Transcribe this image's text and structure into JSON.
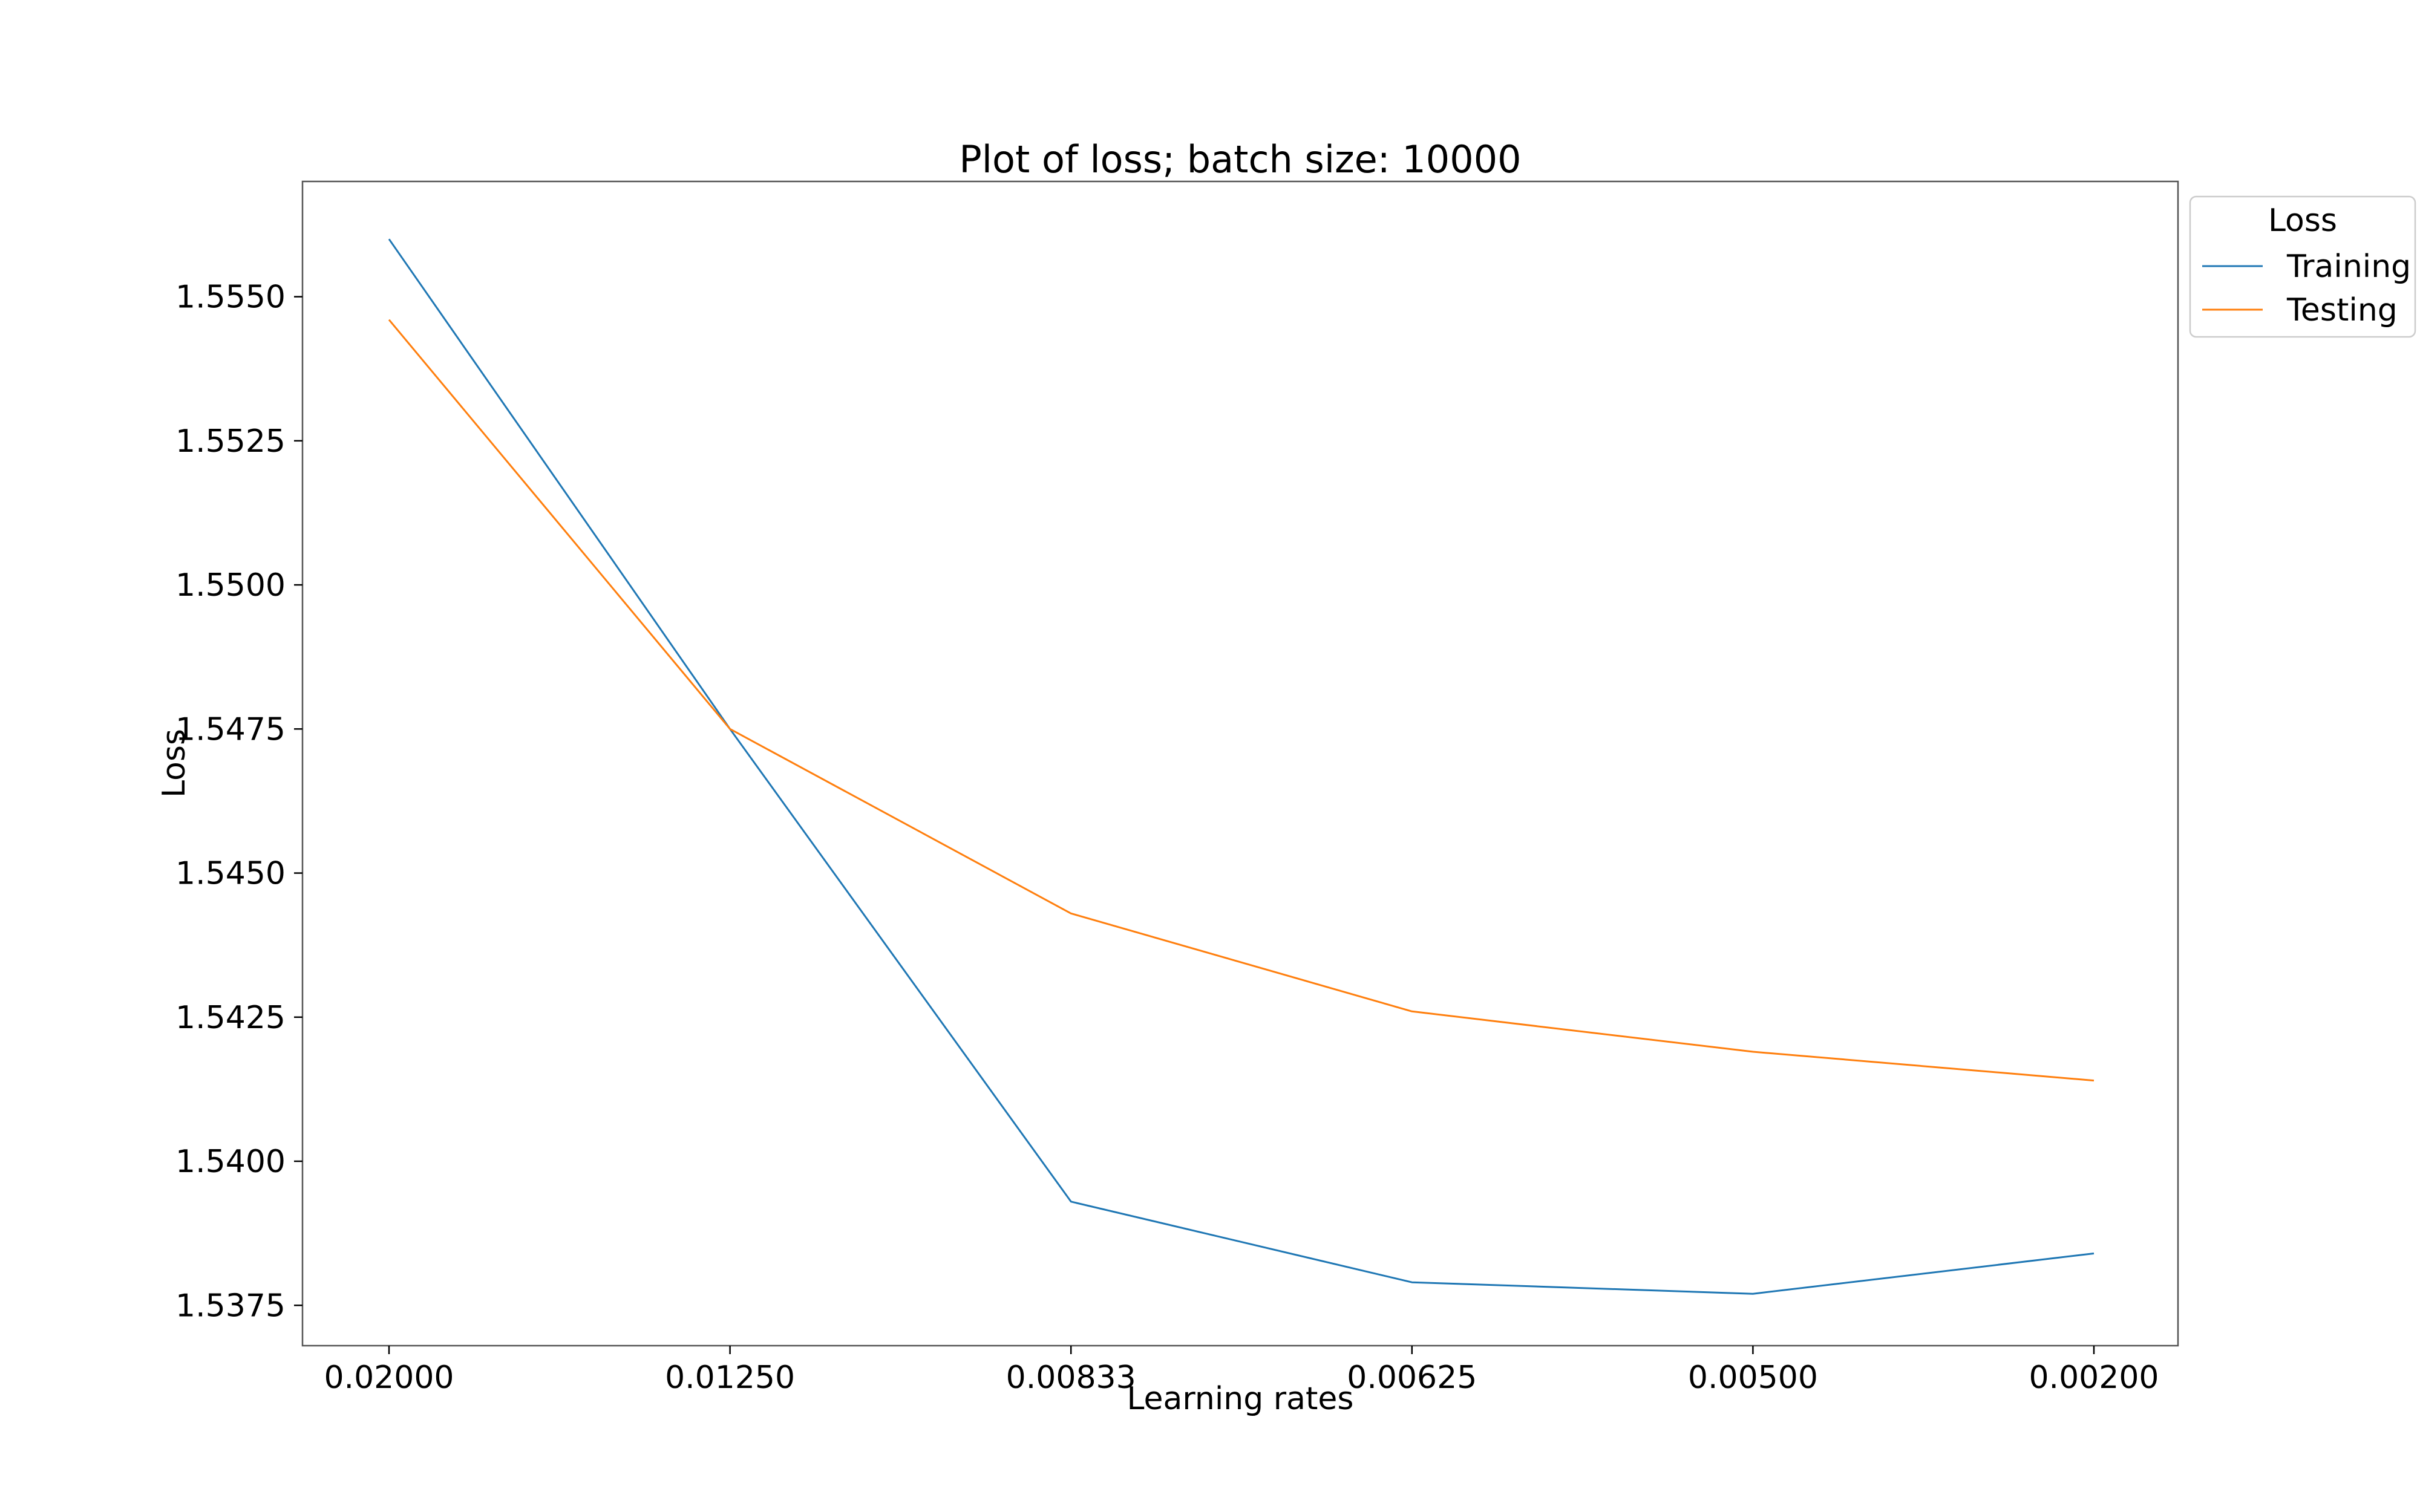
{
  "chart_data": {
    "type": "line",
    "title": "Plot of loss; batch size: 10000",
    "xlabel": "Learning rates",
    "ylabel": "Loss",
    "categories": [
      "0.02000",
      "0.01250",
      "0.00833",
      "0.00625",
      "0.00500",
      "0.00200"
    ],
    "yticks": [
      "1.5375",
      "1.5400",
      "1.5425",
      "1.5450",
      "1.5475",
      "1.5500",
      "1.5525",
      "1.5550"
    ],
    "ylim": [
      1.5368,
      1.557
    ],
    "grid": false,
    "legend": {
      "title": "Loss",
      "placement": "outside-top-right"
    },
    "series": [
      {
        "name": "Training",
        "color": "#1f77b4",
        "values": [
          1.556,
          1.5475,
          1.5393,
          1.5379,
          1.5377,
          1.5384
        ]
      },
      {
        "name": "Testing",
        "color": "#ff7f0e",
        "values": [
          1.5546,
          1.5475,
          1.5443,
          1.5426,
          1.5419,
          1.5414
        ]
      }
    ]
  }
}
